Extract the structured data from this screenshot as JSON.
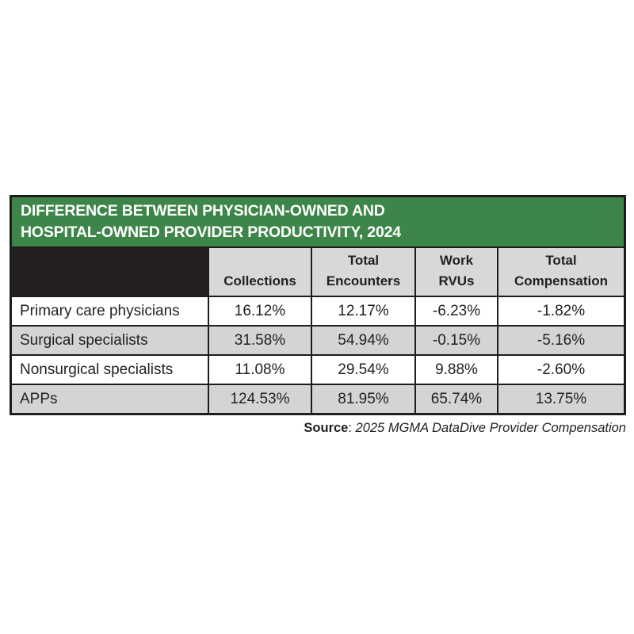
{
  "figure": {
    "title_line1": "DIFFERENCE BETWEEN PHYSICIAN-OWNED AND",
    "title_line2": "HOSPITAL-OWNED PROVIDER PRODUCTIVITY, 2024",
    "header": {
      "col1_line1": "Collections",
      "col2_line1": "Total",
      "col2_line2": "Encounters",
      "col3_line1": "Work",
      "col3_line2": "RVUs",
      "col4_line1": "Total",
      "col4_line2": "Compensation"
    },
    "rows": [
      {
        "label": "Primary care physicians",
        "values": [
          "16.12%",
          "12.17%",
          "-6.23%",
          "-1.82%"
        ]
      },
      {
        "label": "Surgical specialists",
        "values": [
          "31.58%",
          "54.94%",
          "-0.15%",
          "-5.16%"
        ]
      },
      {
        "label": "Nonsurgical specialists",
        "values": [
          "11.08%",
          "29.54%",
          "9.88%",
          "-2.60%"
        ]
      },
      {
        "label": "APPs",
        "values": [
          "124.53%",
          "81.95%",
          "65.74%",
          "13.75%"
        ]
      }
    ],
    "source_label": "Source",
    "source_separator": ": ",
    "source_text": "2025 MGMA DataDive Provider Compensation",
    "colors": {
      "title_green": "#3d8549",
      "ink_black": "#231f20",
      "header_gray": "#d8d8d8",
      "row_gray": "#d4d4d4",
      "row_white": "#ffffff",
      "title_text": "#ffffff"
    }
  },
  "chart_data": {
    "type": "table",
    "title": "DIFFERENCE BETWEEN PHYSICIAN-OWNED AND HOSPITAL-OWNED PROVIDER PRODUCTIVITY, 2024",
    "columns": [
      "",
      "Collections",
      "Total Encounters",
      "Work RVUs",
      "Total Compensation"
    ],
    "rows": [
      [
        "Primary care physicians",
        "16.12%",
        "12.17%",
        "-6.23%",
        "-1.82%"
      ],
      [
        "Surgical specialists",
        "31.58%",
        "54.94%",
        "-0.15%",
        "-5.16%"
      ],
      [
        "Nonsurgical specialists",
        "11.08%",
        "29.54%",
        "9.88%",
        "-2.60%"
      ],
      [
        "APPs",
        "124.53%",
        "81.95%",
        "65.74%",
        "13.75%"
      ]
    ],
    "source": "Source: 2025 MGMA DataDive Provider Compensation",
    "layout": "title band green, header row gray, data rows alternating white/gray, black grid borders"
  }
}
